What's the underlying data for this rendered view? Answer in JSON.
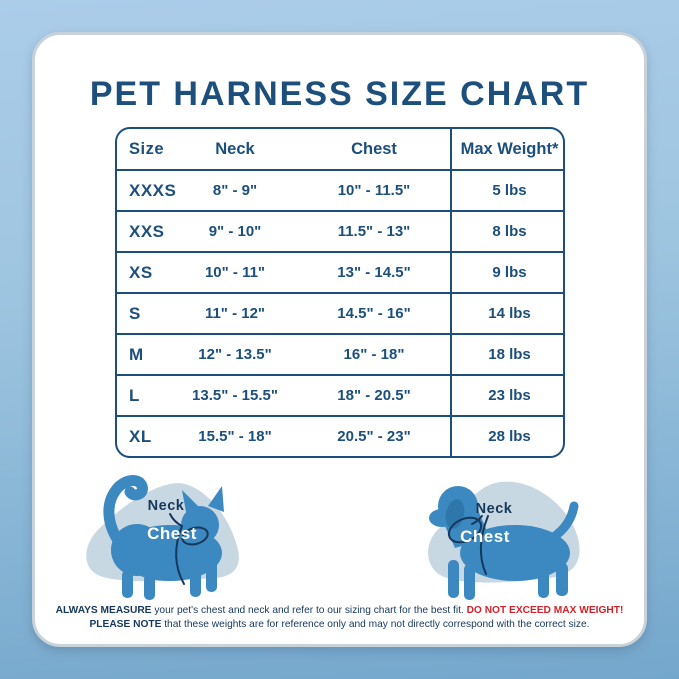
{
  "title": "PET HARNESS SIZE CHART",
  "colors": {
    "navy": "#1c4f7c",
    "text_navy": "#16385c",
    "red": "#d2232a",
    "pet_blue": "#3c88c0",
    "blob": "#c8d8e3",
    "background_top": "#abcdea",
    "background_bottom": "#74a7cc",
    "card": "#ffffff"
  },
  "table": {
    "headers": {
      "size": "Size",
      "neck": "Neck",
      "chest": "Chest",
      "max_weight": "Max Weight*"
    },
    "rows": [
      {
        "size": "XXXS",
        "neck": "8\" - 9\"",
        "chest": "10\" - 11.5\"",
        "max_weight": "5 lbs"
      },
      {
        "size": "XXS",
        "neck": "9\" - 10\"",
        "chest": "11.5\" - 13\"",
        "max_weight": "8 lbs"
      },
      {
        "size": "XS",
        "neck": "10\" - 11\"",
        "chest": "13\" - 14.5\"",
        "max_weight": "9 lbs"
      },
      {
        "size": "S",
        "neck": "11\" - 12\"",
        "chest": "14.5\" - 16\"",
        "max_weight": "14 lbs"
      },
      {
        "size": "M",
        "neck": "12\" - 13.5\"",
        "chest": "16\" - 18\"",
        "max_weight": "18 lbs"
      },
      {
        "size": "L",
        "neck": "13.5\" - 15.5\"",
        "chest": "18\" - 20.5\"",
        "max_weight": "23 lbs"
      },
      {
        "size": "XL",
        "neck": "15.5\" - 18\"",
        "chest": "20.5\" - 23\"",
        "max_weight": "28 lbs"
      }
    ]
  },
  "diagrams": {
    "cat": {
      "neck_label": "Neck",
      "chest_label": "Chest"
    },
    "dog": {
      "neck_label": "Neck",
      "chest_label": "Chest"
    }
  },
  "disclaimer": {
    "line1": [
      {
        "text": "ALWAYS MEASURE",
        "style": "bold"
      },
      {
        "text": " your pet's chest and neck and refer to our sizing chart for the best fit. ",
        "style": "normal"
      },
      {
        "text": "DO NOT EXCEED MAX WEIGHT!",
        "style": "bold-red"
      }
    ],
    "line2": [
      {
        "text": "PLEASE NOTE",
        "style": "bold"
      },
      {
        "text": " that these weights are for reference only and may not directly correspond with the correct size.",
        "style": "normal"
      }
    ]
  }
}
